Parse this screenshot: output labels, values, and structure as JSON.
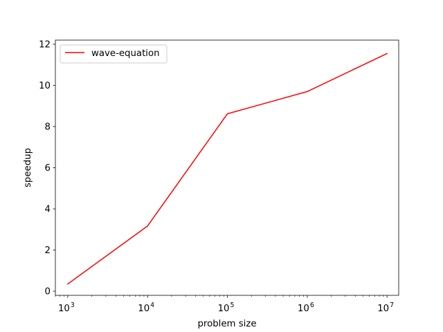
{
  "chart_data": {
    "type": "line",
    "title": "",
    "xlabel": "problem size",
    "ylabel": "speedup",
    "xscale": "log",
    "xlim": [
      700,
      14000000
    ],
    "ylim": [
      -0.2,
      12.2
    ],
    "grid": false,
    "legend_position": "top-left",
    "x_ticks": [
      {
        "value": 1000,
        "base": "10",
        "exp": "3"
      },
      {
        "value": 10000,
        "base": "10",
        "exp": "4"
      },
      {
        "value": 100000,
        "base": "10",
        "exp": "5"
      },
      {
        "value": 1000000,
        "base": "10",
        "exp": "6"
      },
      {
        "value": 10000000,
        "base": "10",
        "exp": "7"
      }
    ],
    "y_ticks": [
      0,
      2,
      4,
      6,
      8,
      10,
      12
    ],
    "series": [
      {
        "name": "wave-equation",
        "color": "#ff0000",
        "x": [
          1000,
          10000,
          100000,
          1000000,
          10000000
        ],
        "y": [
          0.35,
          3.17,
          8.62,
          9.7,
          11.55
        ]
      }
    ]
  }
}
